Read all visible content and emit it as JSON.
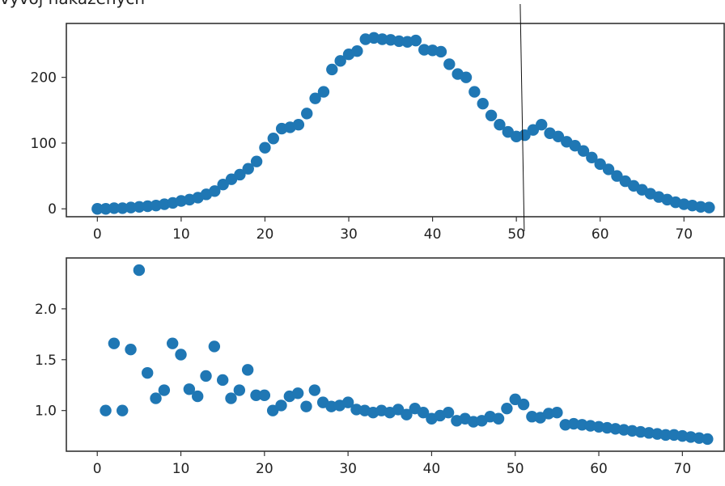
{
  "title": "vývoj nakažených",
  "colors": {
    "marker": "#1f77b4",
    "axes": "#333333",
    "cursor_line": "#111111"
  },
  "chart_data": [
    {
      "type": "scatter",
      "title": "vývoj nakažených",
      "xlabel": "",
      "ylabel": "",
      "xlim": [
        -3.7,
        74.8
      ],
      "ylim": [
        -12,
        282
      ],
      "xticks": [
        0,
        10,
        20,
        30,
        40,
        50,
        60,
        70
      ],
      "yticks": [
        0,
        100,
        200
      ],
      "grid": false,
      "annotations": [
        {
          "type": "vline",
          "x": 50.7
        }
      ],
      "series": [
        {
          "x": [
            0,
            1,
            2,
            3,
            4,
            5,
            6,
            7,
            8,
            9,
            10,
            11,
            12,
            13,
            14,
            15,
            16,
            17,
            18,
            19,
            20,
            21,
            22,
            23,
            24,
            25,
            26,
            27,
            28,
            29,
            30,
            31,
            32,
            33,
            34,
            35,
            36,
            37,
            38,
            39,
            40,
            41,
            42,
            43,
            44,
            45,
            46,
            47,
            48,
            49,
            50,
            51,
            52,
            53,
            54,
            55,
            56,
            57,
            58,
            59,
            60,
            61,
            62,
            63,
            64,
            65,
            66,
            67,
            68,
            69,
            70,
            71,
            72,
            73
          ],
          "y": [
            0,
            0,
            1,
            1,
            2,
            3,
            4,
            5,
            7,
            9,
            12,
            14,
            17,
            22,
            27,
            37,
            45,
            52,
            61,
            72,
            93,
            107,
            122,
            124,
            128,
            145,
            168,
            178,
            212,
            225,
            235,
            240,
            258,
            260,
            258,
            257,
            255,
            254,
            256,
            242,
            241,
            239,
            220,
            205,
            200,
            178,
            160,
            142,
            128,
            117,
            110,
            112,
            120,
            128,
            115,
            110,
            102,
            96,
            88,
            78,
            68,
            60,
            50,
            42,
            35,
            29,
            23,
            18,
            14,
            10,
            7,
            5,
            3,
            2
          ]
        }
      ]
    },
    {
      "type": "scatter",
      "xlabel": "",
      "ylabel": "",
      "xlim": [
        -3.7,
        75
      ],
      "ylim": [
        0.6,
        2.5
      ],
      "xticks": [
        0,
        10,
        20,
        30,
        40,
        50,
        60,
        70
      ],
      "yticks": [
        1.0,
        1.5,
        2.0
      ],
      "ytick_labels": [
        "1.0",
        "1.5",
        "2.0"
      ],
      "grid": false,
      "series": [
        {
          "x": [
            1,
            2,
            3,
            4,
            5,
            6,
            7,
            8,
            9,
            10,
            11,
            12,
            13,
            14,
            15,
            16,
            17,
            18,
            19,
            20,
            21,
            22,
            23,
            24,
            25,
            26,
            27,
            28,
            29,
            30,
            31,
            32,
            33,
            34,
            35,
            36,
            37,
            38,
            39,
            40,
            41,
            42,
            43,
            44,
            45,
            46,
            47,
            48,
            49,
            50,
            51,
            52,
            53,
            54,
            55,
            56,
            57,
            58,
            59,
            60,
            61,
            62,
            63,
            64,
            65,
            66,
            67,
            68,
            69,
            70,
            71,
            72,
            73
          ],
          "y": [
            1.0,
            1.66,
            1.0,
            1.6,
            2.38,
            1.37,
            1.12,
            1.2,
            1.66,
            1.55,
            1.21,
            1.14,
            1.34,
            1.63,
            1.3,
            1.12,
            1.2,
            1.4,
            1.15,
            1.15,
            1.0,
            1.05,
            1.14,
            1.17,
            1.04,
            1.2,
            1.08,
            1.04,
            1.05,
            1.08,
            1.01,
            1.0,
            0.98,
            1.0,
            0.98,
            1.01,
            0.96,
            1.02,
            0.98,
            0.92,
            0.95,
            0.98,
            0.9,
            0.92,
            0.89,
            0.9,
            0.94,
            0.92,
            1.02,
            1.11,
            1.06,
            0.94,
            0.93,
            0.97,
            0.98,
            0.86,
            0.87,
            0.86,
            0.85,
            0.84,
            0.83,
            0.82,
            0.81,
            0.8,
            0.79,
            0.78,
            0.77,
            0.76,
            0.76,
            0.75,
            0.74,
            0.73,
            0.72
          ]
        }
      ]
    }
  ]
}
